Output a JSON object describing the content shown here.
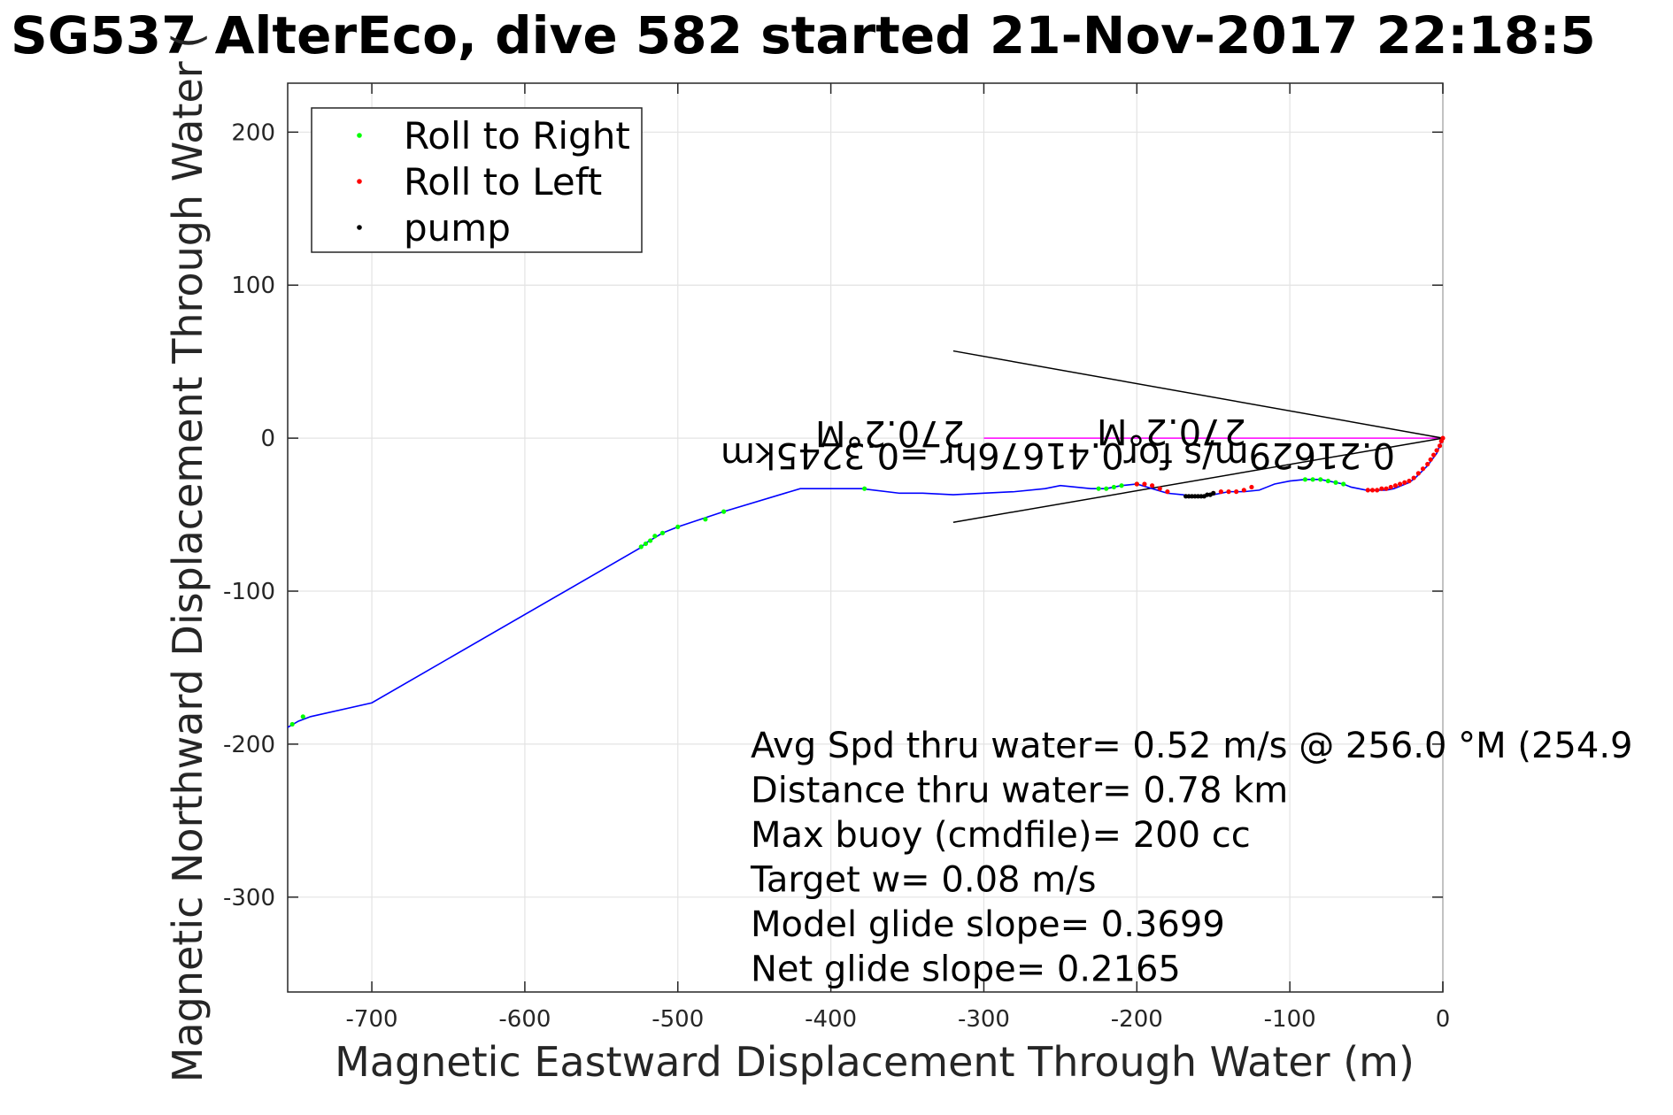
{
  "chart_data": {
    "type": "line",
    "title": "SG537 AlterEco, dive 582 started 21-Nov-2017 22:18:5",
    "xlabel": "Magnetic Eastward Displacement Through Water (m)",
    "ylabel": "Magnetic Northward Displacement Through Water (",
    "xlim": [
      -755,
      0
    ],
    "ylim": [
      -362,
      232
    ],
    "xticks": [
      -700,
      -600,
      -500,
      -400,
      -300,
      -200,
      -100,
      0
    ],
    "yticks": [
      -300,
      -200,
      -100,
      0,
      100,
      200
    ],
    "grid": true,
    "legend_position": "top-left",
    "legend": [
      "Roll to Right",
      "Roll to Left",
      "pump"
    ],
    "series": [
      {
        "name": "",
        "kind": "track",
        "color": "#0000ff",
        "x": [
          0,
          -2,
          -4,
          -7,
          -10,
          -14,
          -18,
          -22,
          -27,
          -32,
          -37,
          -42,
          -46,
          -50,
          -55,
          -60,
          -65,
          -70,
          -75,
          -80,
          -85,
          -90,
          -100,
          -110,
          -115,
          -120,
          -130,
          -140,
          -145,
          -150,
          -155,
          -160,
          -165,
          -170,
          -180,
          -190,
          -200,
          -210,
          -220,
          -230,
          -240,
          -250,
          -260,
          -280,
          -300,
          -320,
          -340,
          -355,
          -380,
          -400,
          -420,
          -470,
          -500,
          -510,
          -520,
          -525,
          -700,
          -740,
          -748,
          -755
        ],
        "y": [
          0,
          -5,
          -10,
          -14,
          -18,
          -22,
          -26,
          -29,
          -31,
          -33,
          -34,
          -34,
          -34,
          -34,
          -33,
          -32,
          -30,
          -29,
          -28,
          -27,
          -27,
          -27,
          -28,
          -30,
          -32,
          -34,
          -35,
          -35,
          -36,
          -37,
          -38,
          -38,
          -38,
          -37,
          -36,
          -33,
          -30,
          -31,
          -33,
          -33,
          -32,
          -31,
          -33,
          -35,
          -36,
          -37,
          -36,
          -36,
          -33,
          -33,
          -33,
          -48,
          -58,
          -62,
          -68,
          -72,
          -173,
          -182,
          -185,
          -189
        ]
      },
      {
        "name": "Roll to Right",
        "kind": "markers",
        "color": "#00ff00",
        "x": [
          -65,
          -70,
          -75,
          -80,
          -85,
          -90,
          -200,
          -210,
          -215,
          -220,
          -225,
          -378,
          -470,
          -482,
          -500,
          -510,
          -515,
          -518,
          -521,
          -524,
          -745,
          -752
        ],
        "y": [
          -30,
          -29,
          -28,
          -27,
          -27,
          -27,
          -30,
          -31,
          -32,
          -33,
          -33,
          -33,
          -48,
          -53,
          -58,
          -62,
          -64,
          -67,
          -69,
          -71,
          -182,
          -187
        ]
      },
      {
        "name": "Roll to Left",
        "kind": "markers",
        "color": "#ff0000",
        "x": [
          0,
          -1,
          -2,
          -4,
          -6,
          -8,
          -10,
          -13,
          -16,
          -19,
          -22,
          -25,
          -28,
          -31,
          -34,
          -37,
          -40,
          -43,
          -46,
          -49,
          -125,
          -130,
          -135,
          -140,
          -145,
          -150,
          -180,
          -185,
          -190,
          -195,
          -200
        ],
        "y": [
          0,
          -2,
          -5,
          -8,
          -11,
          -14,
          -17,
          -20,
          -23,
          -26,
          -28,
          -29,
          -30,
          -31,
          -32,
          -33,
          -33,
          -34,
          -34,
          -34,
          -32,
          -34,
          -35,
          -35,
          -35,
          -36,
          -35,
          -33,
          -31,
          -30,
          -30
        ]
      },
      {
        "name": "pump",
        "kind": "markers",
        "color": "#000000",
        "x": [
          -150,
          -152,
          -154,
          -156,
          -158,
          -160,
          -162,
          -164,
          -166,
          -168
        ],
        "y": [
          -36,
          -37,
          -37,
          -38,
          -38,
          -38,
          -38,
          -38,
          -38,
          -38
        ]
      },
      {
        "name": "",
        "kind": "line",
        "color": "#ff00ff",
        "x": [
          0,
          -300
        ],
        "y": [
          0,
          0
        ]
      },
      {
        "name": "",
        "kind": "line",
        "color": "#000000",
        "x": [
          0,
          -320
        ],
        "y": [
          0,
          57
        ]
      },
      {
        "name": "",
        "kind": "line",
        "color": "#000000",
        "x": [
          0,
          -320
        ],
        "y": [
          0,
          -55
        ]
      }
    ],
    "annotations": [
      {
        "text": "0.21629m/s for0.41676hr =0.3245km",
        "rotated": true,
        "color": "#000000"
      },
      {
        "text": "270.2°M",
        "rotated": true,
        "color": "#000000"
      },
      {
        "text": "270.2°M",
        "rotated": true,
        "color": "#000000"
      }
    ],
    "stats": [
      "Avg Spd thru water=  0.52 m/s @ 256.0 °M (254.9",
      "Distance thru water=  0.78 km",
      "Max buoy (cmdfile)= 200 cc",
      "Target w= 0.08 m/s",
      "Model glide slope= 0.3699",
      "Net glide slope= 0.2165"
    ]
  }
}
